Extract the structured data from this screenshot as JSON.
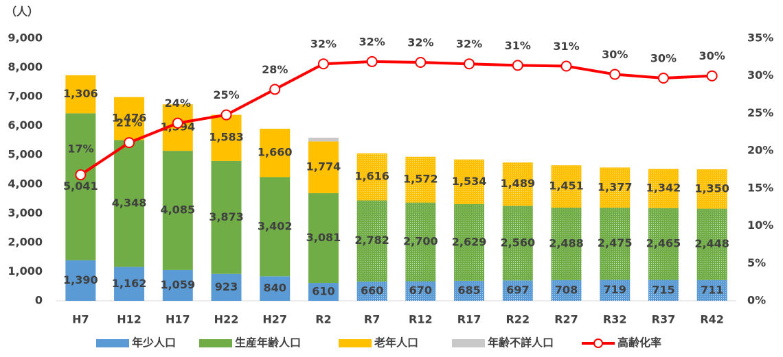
{
  "chart_data": {
    "type": "bar",
    "unit_label": "（人）",
    "categories": [
      "H7",
      "H12",
      "H17",
      "H22",
      "H27",
      "R2",
      "R7",
      "R12",
      "R17",
      "R22",
      "R27",
      "R32",
      "R37",
      "R42"
    ],
    "projected": [
      false,
      false,
      false,
      false,
      false,
      false,
      true,
      true,
      true,
      true,
      true,
      true,
      true,
      true
    ],
    "series": [
      {
        "name": "年少人口",
        "color": "#5b9bd5",
        "values": [
          1390,
          1162,
          1059,
          923,
          840,
          610,
          660,
          670,
          685,
          697,
          708,
          719,
          715,
          711
        ],
        "value_labels": [
          "1,390",
          "1,162",
          "1,059",
          "923",
          "840",
          "610",
          "660",
          "670",
          "685",
          "697",
          "708",
          "719",
          "715",
          "711"
        ]
      },
      {
        "name": "生産年齢人口",
        "color": "#70ad47",
        "values": [
          5041,
          4348,
          4085,
          3873,
          3402,
          3081,
          2782,
          2700,
          2629,
          2560,
          2488,
          2475,
          2465,
          2448
        ],
        "value_labels": [
          "5,041",
          "4,348",
          "4,085",
          "3,873",
          "3,402",
          "3,081",
          "2,782",
          "2,700",
          "2,629",
          "2,560",
          "2,488",
          "2,475",
          "2,465",
          "2,448"
        ]
      },
      {
        "name": "老年人口",
        "color": "#ffc000",
        "values": [
          1306,
          1476,
          1594,
          1583,
          1660,
          1774,
          1616,
          1572,
          1534,
          1489,
          1451,
          1377,
          1342,
          1350
        ],
        "value_labels": [
          "1,306",
          "1,476",
          "1,594",
          "1,583",
          "1,660",
          "1,774",
          "1,616",
          "1,572",
          "1,534",
          "1,489",
          "1,451",
          "1,377",
          "1,342",
          "1,350"
        ]
      },
      {
        "name": "年齢不詳人口",
        "color": "#c9c9c9",
        "values": [
          0,
          0,
          0,
          0,
          0,
          130,
          0,
          0,
          0,
          0,
          0,
          0,
          0,
          0
        ]
      },
      {
        "name": "高齢化率",
        "type": "line",
        "axis": "y2",
        "color": "#ff0000",
        "values": [
          16.8,
          21.1,
          23.7,
          24.8,
          28.2,
          31.6,
          31.9,
          31.8,
          31.6,
          31.4,
          31.3,
          30.2,
          29.7,
          30.0
        ],
        "value_labels": [
          "17%",
          "21%",
          "24%",
          "25%",
          "28%",
          "32%",
          "32%",
          "32%",
          "32%",
          "31%",
          "31%",
          "30%",
          "30%",
          "30%"
        ]
      }
    ],
    "ylim": [
      0,
      9000
    ],
    "yticks": [
      0,
      {
        "value": 1000,
        "label": "1,000"
      },
      {
        "value": 2000,
        "label": "2,000"
      },
      {
        "value": 3000,
        "label": "3,000"
      },
      {
        "value": 4000,
        "label": "4,000"
      },
      {
        "value": 5000,
        "label": "5,000"
      },
      {
        "value": 6000,
        "label": "6,000"
      },
      {
        "value": 7000,
        "label": "7,000"
      },
      {
        "value": 8000,
        "label": "8,000"
      },
      {
        "value": 9000,
        "label": "9,000"
      }
    ],
    "y2lim": [
      0,
      35
    ],
    "y2ticks": [
      {
        "value": 0,
        "label": "0%"
      },
      {
        "value": 5,
        "label": "5%"
      },
      {
        "value": 10,
        "label": "10%"
      },
      {
        "value": 15,
        "label": "15%"
      },
      {
        "value": 20,
        "label": "20%"
      },
      {
        "value": 25,
        "label": "25%"
      },
      {
        "value": 30,
        "label": "30%"
      },
      {
        "value": 35,
        "label": "35%"
      }
    ],
    "legend": "bottom",
    "grid": false
  }
}
